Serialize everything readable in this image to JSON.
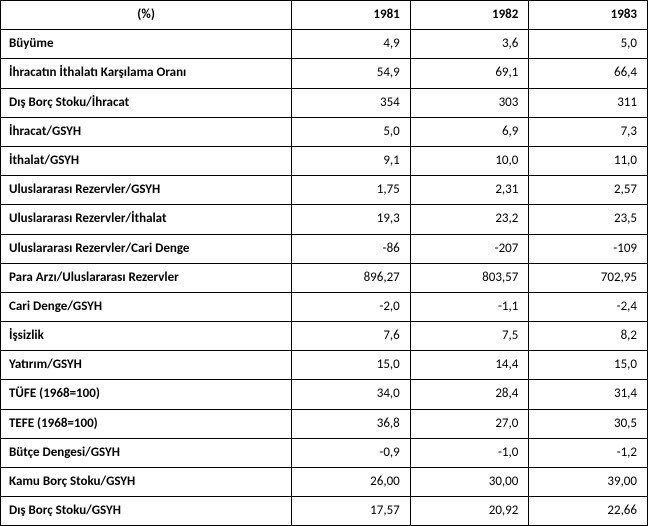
{
  "table": {
    "type": "table",
    "background_color": "#ffffff",
    "border_color": "#000000",
    "font_family": "Calibri, Arial, sans-serif",
    "header_fontsize": 13,
    "cell_fontsize": 13,
    "header_weight": 700,
    "label_weight": 700,
    "value_weight": 400,
    "column_widths_pct": [
      45,
      18.33,
      18.33,
      18.33
    ],
    "text_align": {
      "label": "left",
      "value": "right",
      "header_first": "center",
      "header_year": "right"
    },
    "header": {
      "first": "(%)",
      "years": [
        "1981",
        "1982",
        "1983"
      ]
    },
    "rows": [
      {
        "label": "Büyüme",
        "values": [
          "4,9",
          "3,6",
          "5,0"
        ]
      },
      {
        "label": "İhracatın İthalatı Karşılama Oranı",
        "values": [
          "54,9",
          "69,1",
          "66,4"
        ]
      },
      {
        "label": "Dış Borç Stoku/İhracat",
        "values": [
          "354",
          "303",
          "311"
        ]
      },
      {
        "label": "İhracat/GSYH",
        "values": [
          "5,0",
          "6,9",
          "7,3"
        ]
      },
      {
        "label": "İthalat/GSYH",
        "values": [
          "9,1",
          "10,0",
          "11,0"
        ]
      },
      {
        "label": "Uluslararası Rezervler/GSYH",
        "values": [
          "1,75",
          "2,31",
          "2,57"
        ]
      },
      {
        "label": "Uluslararası Rezervler/İthalat",
        "values": [
          "19,3",
          "23,2",
          "23,5"
        ]
      },
      {
        "label": "Uluslararası Rezervler/Cari Denge",
        "values": [
          "-86",
          "-207",
          "-109"
        ]
      },
      {
        "label": "Para Arzı/Uluslararası Rezervler",
        "values": [
          "896,27",
          "803,57",
          "702,95"
        ]
      },
      {
        "label": "Cari Denge/GSYH",
        "values": [
          "-2,0",
          "-1,1",
          "-2,4"
        ]
      },
      {
        "label": "İşsizlik",
        "values": [
          "7,6",
          "7,5",
          "8,2"
        ]
      },
      {
        "label": "Yatırım/GSYH",
        "values": [
          "15,0",
          "14,4",
          "15,0"
        ]
      },
      {
        "label": "TÜFE (1968=100)",
        "values": [
          "34,0",
          "28,4",
          "31,4"
        ]
      },
      {
        "label": "TEFE (1968=100)",
        "values": [
          "36,8",
          "27,0",
          "30,5"
        ]
      },
      {
        "label": "Bütçe Dengesi/GSYH",
        "values": [
          "-0,9",
          "-1,0",
          "-1,2"
        ]
      },
      {
        "label": "Kamu Borç Stoku/GSYH",
        "values": [
          "26,00",
          "30,00",
          "39,00"
        ]
      },
      {
        "label": "Dış Borç Stoku/GSYH",
        "values": [
          "17,57",
          "20,92",
          "22,66"
        ]
      }
    ]
  }
}
